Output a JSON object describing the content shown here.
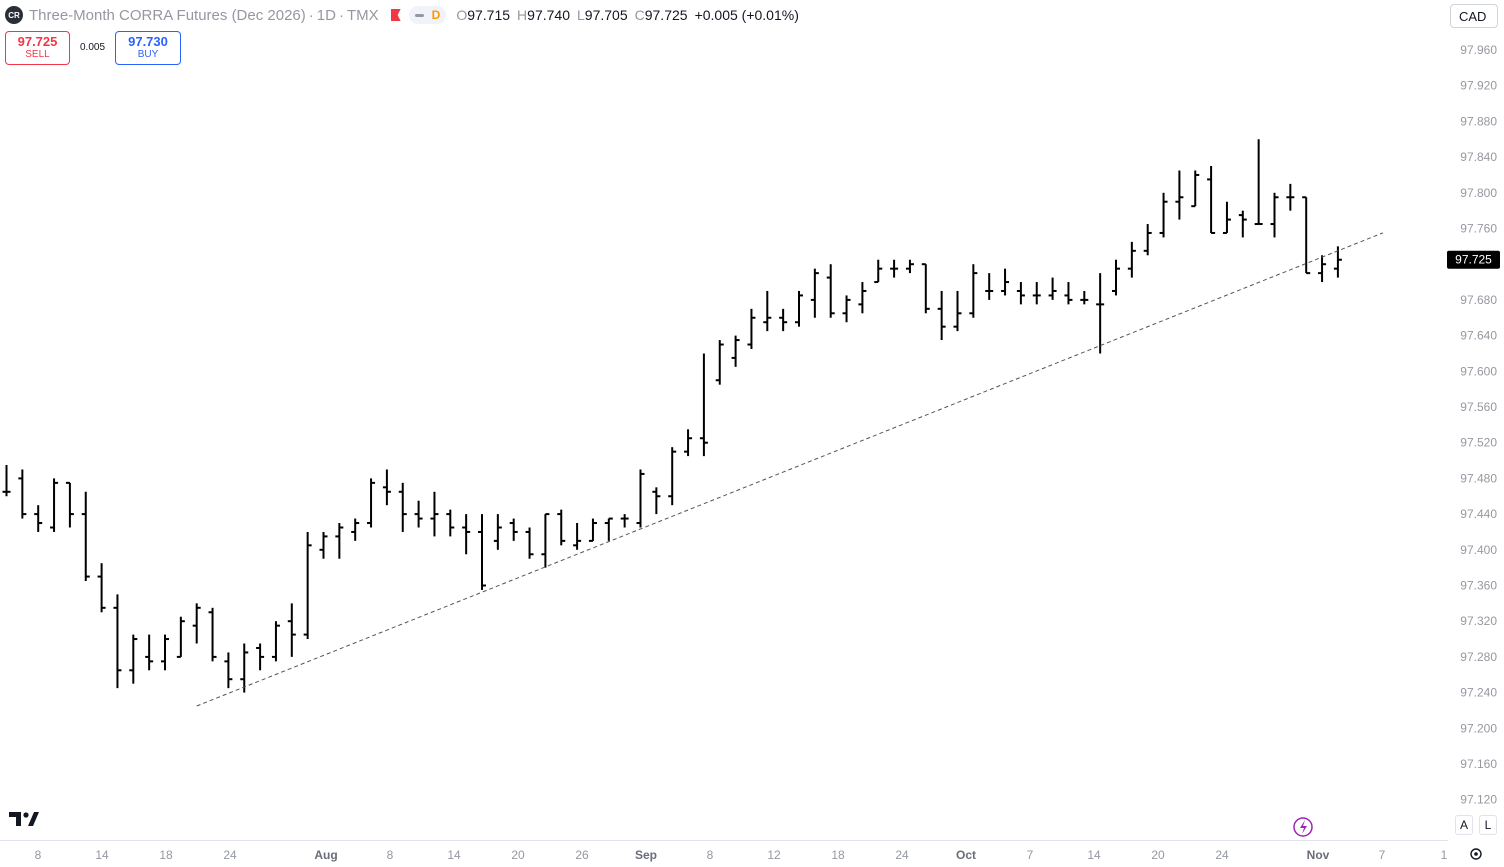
{
  "header": {
    "title": "Three-Month CORRA Futures (Dec 2026)",
    "interval": "1D",
    "exchange": "TMX",
    "separator": "·",
    "mode_badge": "D",
    "o_label": "O",
    "o_value": "97.715",
    "h_label": "H",
    "h_value": "97.740",
    "l_label": "L",
    "l_value": "97.705",
    "c_label": "C",
    "c_value": "97.725",
    "change": "+0.005 (+0.01%)",
    "logo_text": "CR"
  },
  "trade": {
    "sell_price": "97.725",
    "sell_label": "SELL",
    "buy_price": "97.730",
    "buy_label": "BUY",
    "spread": "0.005"
  },
  "currency": "CAD",
  "controls": {
    "auto": "A",
    "log": "L"
  },
  "colors": {
    "bars": "#000000",
    "sell": "#f23645",
    "buy": "#2962ff",
    "flag": "#f23645",
    "mode": "#ff9800",
    "trendline": "#555555"
  },
  "chart_data": {
    "type": "ohlc",
    "title": "Three-Month CORRA Futures (Dec 2026)",
    "ylim": [
      97.1,
      97.98
    ],
    "y_ticks": [
      "97.960",
      "97.920",
      "97.880",
      "97.840",
      "97.800",
      "97.760",
      "97.720",
      "97.680",
      "97.640",
      "97.600",
      "97.560",
      "97.520",
      "97.480",
      "97.440",
      "97.400",
      "97.360",
      "97.320",
      "97.280",
      "97.240",
      "97.200",
      "97.160",
      "97.120"
    ],
    "x_ticks": [
      "8",
      "14",
      "18",
      "24",
      "Aug",
      "8",
      "14",
      "20",
      "26",
      "Sep",
      "8",
      "12",
      "18",
      "24",
      "Oct",
      "7",
      "14",
      "20",
      "24",
      "Nov",
      "7",
      "1"
    ],
    "bold_x_ticks": [
      "Aug",
      "Sep",
      "Oct",
      "Nov"
    ],
    "last_price": "97.725",
    "last_price_value": 97.725,
    "trendline": {
      "start": [
        "Jul 23",
        97.225
      ],
      "end": [
        "Nov 3",
        97.735
      ],
      "style": "dashed"
    },
    "bars": [
      {
        "d": "Jul 7",
        "o": 97.465,
        "h": 97.495,
        "l": 97.46,
        "c": 97.465
      },
      {
        "d": "Jul 8",
        "o": 97.48,
        "h": 97.49,
        "l": 97.435,
        "c": 97.44
      },
      {
        "d": "Jul 9",
        "o": 97.44,
        "h": 97.45,
        "l": 97.42,
        "c": 97.43
      },
      {
        "d": "Jul 10",
        "o": 97.425,
        "h": 97.48,
        "l": 97.42,
        "c": 97.475
      },
      {
        "d": "Jul 11",
        "o": 97.475,
        "h": 97.475,
        "l": 97.425,
        "c": 97.44
      },
      {
        "d": "Jul 14",
        "o": 97.44,
        "h": 97.465,
        "l": 97.365,
        "c": 97.37
      },
      {
        "d": "Jul 15",
        "o": 97.37,
        "h": 97.385,
        "l": 97.33,
        "c": 97.335
      },
      {
        "d": "Jul 16",
        "o": 97.335,
        "h": 97.35,
        "l": 97.245,
        "c": 97.265
      },
      {
        "d": "Jul 17",
        "o": 97.265,
        "h": 97.305,
        "l": 97.25,
        "c": 97.3
      },
      {
        "d": "Jul 18",
        "o": 97.28,
        "h": 97.305,
        "l": 97.265,
        "c": 97.275
      },
      {
        "d": "Jul 21",
        "o": 97.275,
        "h": 97.305,
        "l": 97.265,
        "c": 97.3
      },
      {
        "d": "Jul 22",
        "o": 97.28,
        "h": 97.325,
        "l": 97.28,
        "c": 97.32
      },
      {
        "d": "Jul 23",
        "o": 97.315,
        "h": 97.34,
        "l": 97.295,
        "c": 97.335
      },
      {
        "d": "Jul 24",
        "o": 97.33,
        "h": 97.335,
        "l": 97.275,
        "c": 97.28
      },
      {
        "d": "Jul 25",
        "o": 97.275,
        "h": 97.285,
        "l": 97.245,
        "c": 97.255
      },
      {
        "d": "Jul 28",
        "o": 97.255,
        "h": 97.295,
        "l": 97.24,
        "c": 97.285
      },
      {
        "d": "Jul 29",
        "o": 97.29,
        "h": 97.295,
        "l": 97.265,
        "c": 97.28
      },
      {
        "d": "Jul 30",
        "o": 97.28,
        "h": 97.32,
        "l": 97.275,
        "c": 97.315
      },
      {
        "d": "Jul 31",
        "o": 97.32,
        "h": 97.34,
        "l": 97.28,
        "c": 97.305
      },
      {
        "d": "Aug 1",
        "o": 97.305,
        "h": 97.42,
        "l": 97.3,
        "c": 97.405
      },
      {
        "d": "Aug 4",
        "o": 97.4,
        "h": 97.42,
        "l": 97.39,
        "c": 97.415
      },
      {
        "d": "Aug 5",
        "o": 97.415,
        "h": 97.43,
        "l": 97.39,
        "c": 97.425
      },
      {
        "d": "Aug 6",
        "o": 97.42,
        "h": 97.435,
        "l": 97.41,
        "c": 97.43
      },
      {
        "d": "Aug 7",
        "o": 97.43,
        "h": 97.48,
        "l": 97.425,
        "c": 97.475
      },
      {
        "d": "Aug 8",
        "o": 97.47,
        "h": 97.49,
        "l": 97.45,
        "c": 97.465
      },
      {
        "d": "Aug 11",
        "o": 97.465,
        "h": 97.475,
        "l": 97.42,
        "c": 97.44
      },
      {
        "d": "Aug 12",
        "o": 97.44,
        "h": 97.455,
        "l": 97.425,
        "c": 97.435
      },
      {
        "d": "Aug 13",
        "o": 97.435,
        "h": 97.465,
        "l": 97.415,
        "c": 97.44
      },
      {
        "d": "Aug 14",
        "o": 97.44,
        "h": 97.445,
        "l": 97.415,
        "c": 97.425
      },
      {
        "d": "Aug 15",
        "o": 97.425,
        "h": 97.44,
        "l": 97.395,
        "c": 97.42
      },
      {
        "d": "Aug 18",
        "o": 97.42,
        "h": 97.44,
        "l": 97.355,
        "c": 97.36
      },
      {
        "d": "Aug 19",
        "o": 97.41,
        "h": 97.44,
        "l": 97.4,
        "c": 97.425
      },
      {
        "d": "Aug 20",
        "o": 97.43,
        "h": 97.435,
        "l": 97.41,
        "c": 97.42
      },
      {
        "d": "Aug 21",
        "o": 97.42,
        "h": 97.425,
        "l": 97.39,
        "c": 97.395
      },
      {
        "d": "Aug 22",
        "o": 97.395,
        "h": 97.44,
        "l": 97.38,
        "c": 97.44
      },
      {
        "d": "Aug 25",
        "o": 97.44,
        "h": 97.445,
        "l": 97.405,
        "c": 97.41
      },
      {
        "d": "Aug 26",
        "o": 97.405,
        "h": 97.43,
        "l": 97.4,
        "c": 97.41
      },
      {
        "d": "Aug 27",
        "o": 97.41,
        "h": 97.435,
        "l": 97.41,
        "c": 97.43
      },
      {
        "d": "Aug 28",
        "o": 97.43,
        "h": 97.435,
        "l": 97.41,
        "c": 97.435
      },
      {
        "d": "Aug 29",
        "o": 97.435,
        "h": 97.44,
        "l": 97.425,
        "c": 97.435
      },
      {
        "d": "Sep 2",
        "o": 97.43,
        "h": 97.49,
        "l": 97.425,
        "c": 97.485
      },
      {
        "d": "Sep 3",
        "o": 97.465,
        "h": 97.47,
        "l": 97.44,
        "c": 97.46
      },
      {
        "d": "Sep 4",
        "o": 97.46,
        "h": 97.515,
        "l": 97.45,
        "c": 97.51
      },
      {
        "d": "Sep 5",
        "o": 97.51,
        "h": 97.535,
        "l": 97.505,
        "c": 97.525
      },
      {
        "d": "Sep 8",
        "o": 97.525,
        "h": 97.62,
        "l": 97.505,
        "c": 97.52
      },
      {
        "d": "Sep 9",
        "o": 97.59,
        "h": 97.635,
        "l": 97.585,
        "c": 97.63
      },
      {
        "d": "Sep 10",
        "o": 97.615,
        "h": 97.64,
        "l": 97.605,
        "c": 97.635
      },
      {
        "d": "Sep 11",
        "o": 97.63,
        "h": 97.67,
        "l": 97.625,
        "c": 97.66
      },
      {
        "d": "Sep 12",
        "o": 97.655,
        "h": 97.69,
        "l": 97.645,
        "c": 97.66
      },
      {
        "d": "Sep 15",
        "o": 97.66,
        "h": 97.67,
        "l": 97.645,
        "c": 97.655
      },
      {
        "d": "Sep 16",
        "o": 97.655,
        "h": 97.69,
        "l": 97.65,
        "c": 97.685
      },
      {
        "d": "Sep 17",
        "o": 97.68,
        "h": 97.715,
        "l": 97.66,
        "c": 97.71
      },
      {
        "d": "Sep 18",
        "o": 97.705,
        "h": 97.72,
        "l": 97.66,
        "c": 97.665
      },
      {
        "d": "Sep 19",
        "o": 97.665,
        "h": 97.685,
        "l": 97.655,
        "c": 97.68
      },
      {
        "d": "Sep 22",
        "o": 97.675,
        "h": 97.7,
        "l": 97.665,
        "c": 97.69
      },
      {
        "d": "Sep 23",
        "o": 97.7,
        "h": 97.725,
        "l": 97.7,
        "c": 97.715
      },
      {
        "d": "Sep 24",
        "o": 97.715,
        "h": 97.725,
        "l": 97.705,
        "c": 97.715
      },
      {
        "d": "Sep 25",
        "o": 97.715,
        "h": 97.725,
        "l": 97.71,
        "c": 97.72
      },
      {
        "d": "Sep 26",
        "o": 97.72,
        "h": 97.72,
        "l": 97.665,
        "c": 97.67
      },
      {
        "d": "Sep 29",
        "o": 97.67,
        "h": 97.69,
        "l": 97.635,
        "c": 97.65
      },
      {
        "d": "Sep 30",
        "o": 97.65,
        "h": 97.69,
        "l": 97.645,
        "c": 97.665
      },
      {
        "d": "Oct 1",
        "o": 97.665,
        "h": 97.72,
        "l": 97.66,
        "c": 97.71
      },
      {
        "d": "Oct 2",
        "o": 97.69,
        "h": 97.71,
        "l": 97.68,
        "c": 97.69
      },
      {
        "d": "Oct 3",
        "o": 97.69,
        "h": 97.715,
        "l": 97.685,
        "c": 97.7
      },
      {
        "d": "Oct 6",
        "o": 97.69,
        "h": 97.7,
        "l": 97.675,
        "c": 97.685
      },
      {
        "d": "Oct 7",
        "o": 97.685,
        "h": 97.7,
        "l": 97.675,
        "c": 97.685
      },
      {
        "d": "Oct 8",
        "o": 97.685,
        "h": 97.705,
        "l": 97.68,
        "c": 97.69
      },
      {
        "d": "Oct 9",
        "o": 97.685,
        "h": 97.7,
        "l": 97.675,
        "c": 97.68
      },
      {
        "d": "Oct 10",
        "o": 97.68,
        "h": 97.69,
        "l": 97.675,
        "c": 97.68
      },
      {
        "d": "Oct 13",
        "o": 97.675,
        "h": 97.71,
        "l": 97.62,
        "c": 97.675
      },
      {
        "d": "Oct 14",
        "o": 97.69,
        "h": 97.725,
        "l": 97.685,
        "c": 97.715
      },
      {
        "d": "Oct 15",
        "o": 97.715,
        "h": 97.745,
        "l": 97.705,
        "c": 97.735
      },
      {
        "d": "Oct 16",
        "o": 97.735,
        "h": 97.765,
        "l": 97.73,
        "c": 97.755
      },
      {
        "d": "Oct 17",
        "o": 97.755,
        "h": 97.8,
        "l": 97.75,
        "c": 97.79
      },
      {
        "d": "Oct 20",
        "o": 97.79,
        "h": 97.825,
        "l": 97.77,
        "c": 97.795
      },
      {
        "d": "Oct 21",
        "o": 97.785,
        "h": 97.825,
        "l": 97.785,
        "c": 97.82
      },
      {
        "d": "Oct 22",
        "o": 97.815,
        "h": 97.83,
        "l": 97.755,
        "c": 97.755
      },
      {
        "d": "Oct 23",
        "o": 97.755,
        "h": 97.79,
        "l": 97.755,
        "c": 97.77
      },
      {
        "d": "Oct 24",
        "o": 97.775,
        "h": 97.78,
        "l": 97.75,
        "c": 97.77
      },
      {
        "d": "Oct 27",
        "o": 97.765,
        "h": 97.86,
        "l": 97.765,
        "c": 97.765
      },
      {
        "d": "Oct 28",
        "o": 97.765,
        "h": 97.8,
        "l": 97.75,
        "c": 97.795
      },
      {
        "d": "Oct 29",
        "o": 97.795,
        "h": 97.81,
        "l": 97.78,
        "c": 97.795
      },
      {
        "d": "Oct 30",
        "o": 97.795,
        "h": 97.795,
        "l": 97.71,
        "c": 97.71
      },
      {
        "d": "Oct 31",
        "o": 97.71,
        "h": 97.73,
        "l": 97.7,
        "c": 97.72
      },
      {
        "d": "Nov 3",
        "o": 97.715,
        "h": 97.74,
        "l": 97.705,
        "c": 97.725
      }
    ]
  }
}
